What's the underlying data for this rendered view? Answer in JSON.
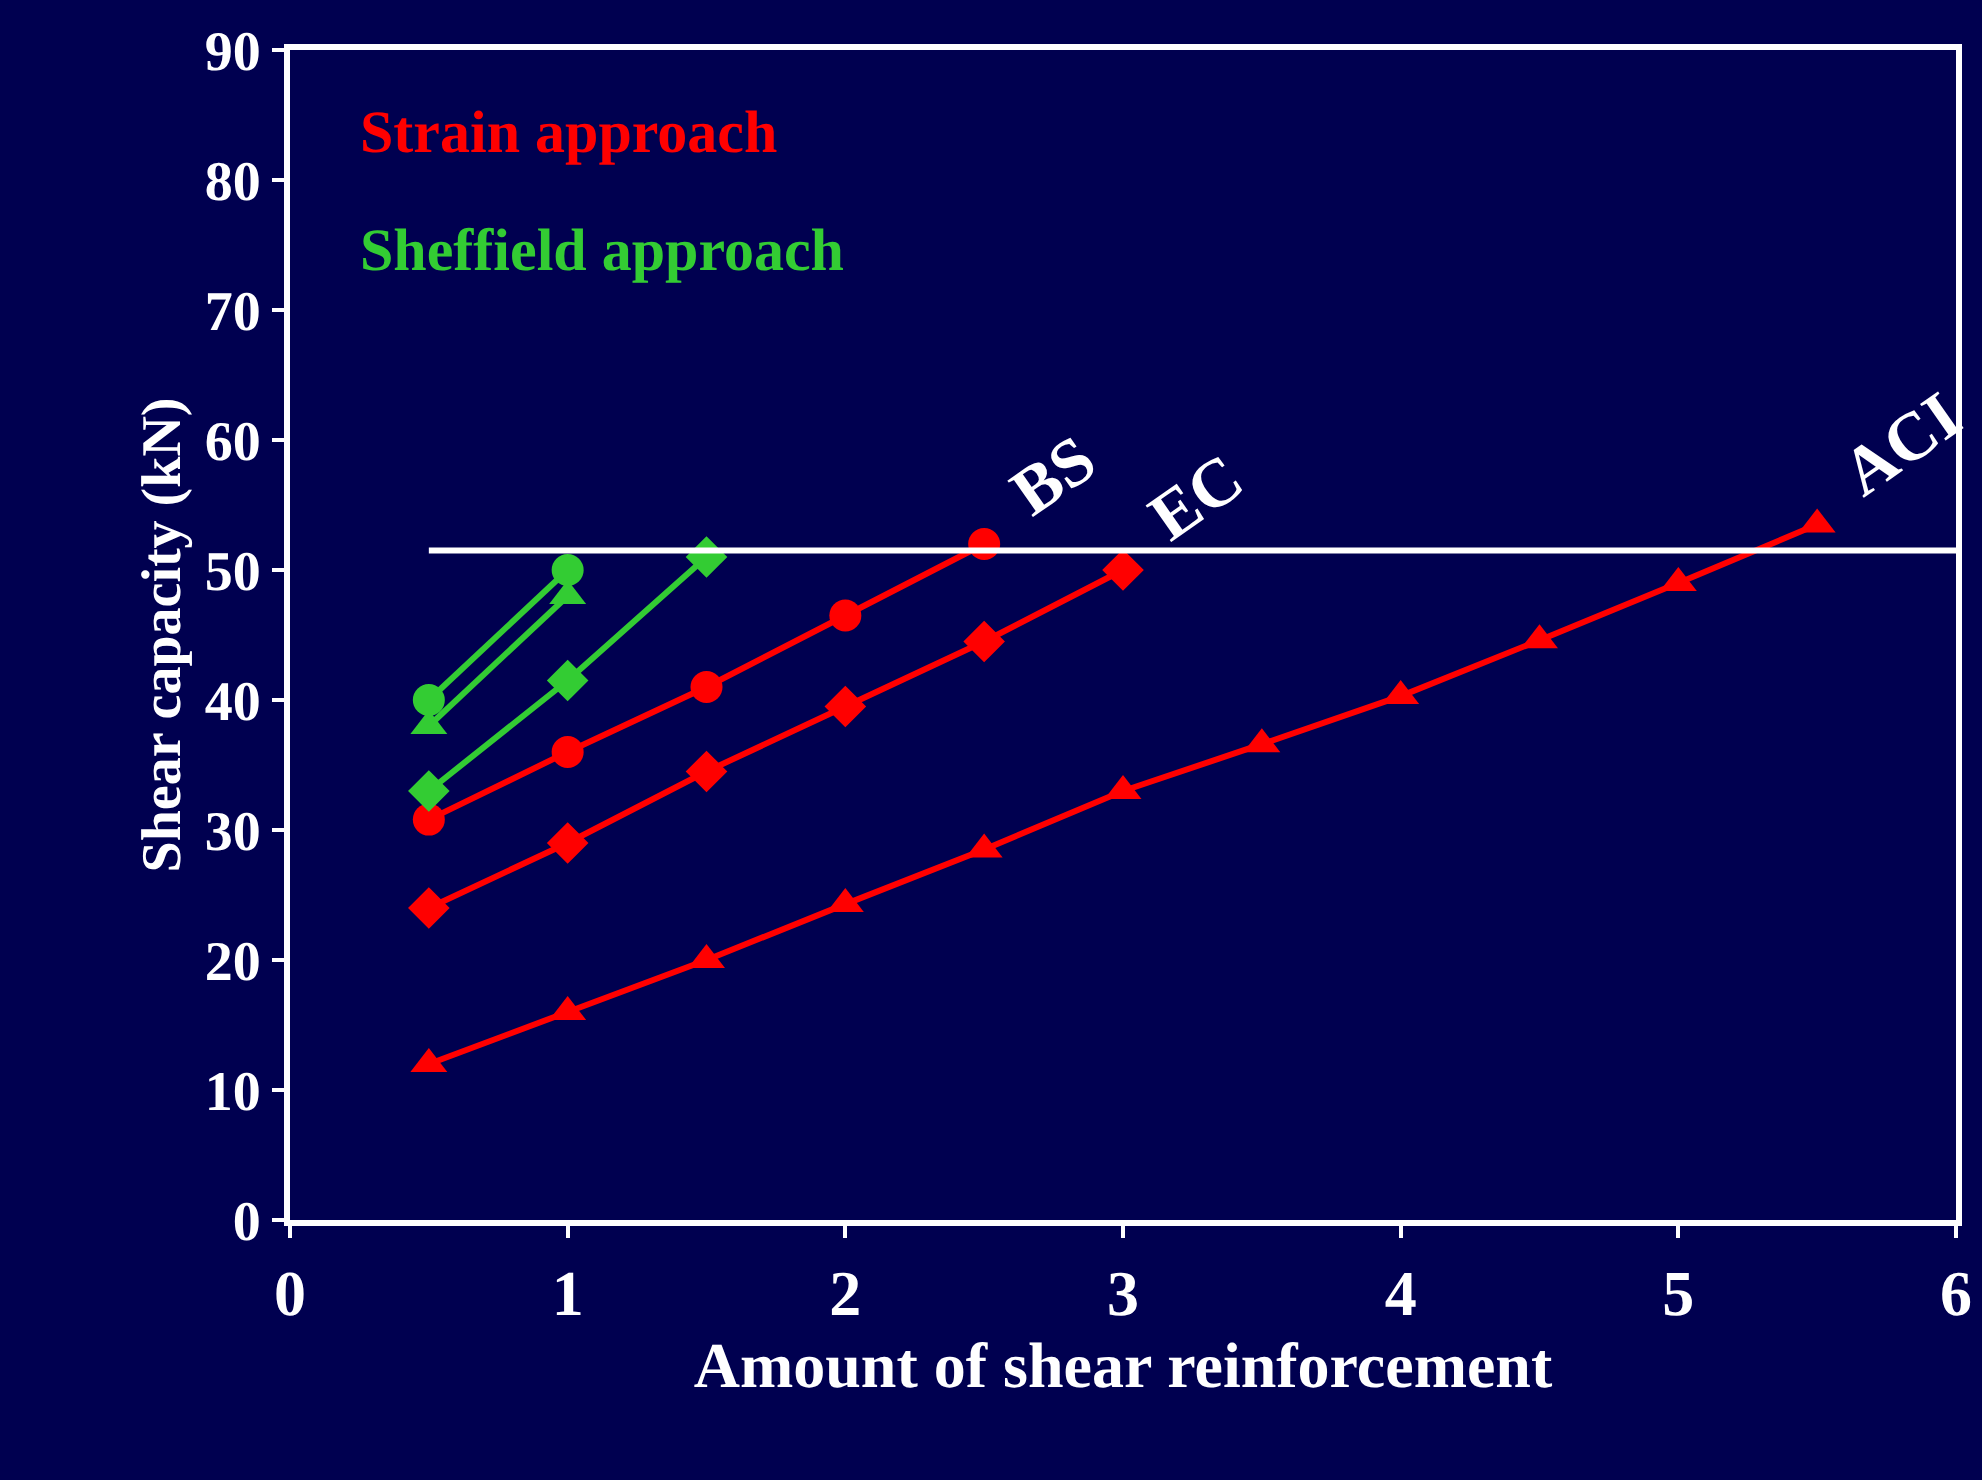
{
  "chart_data": {
    "type": "line",
    "xlabel": "Amount of shear reinforcement",
    "ylabel": "Shear capacity (kN)",
    "annotations": [
      "Strain approach",
      "Sheffield approach"
    ],
    "xlim": [
      0,
      6
    ],
    "xticks": [
      0,
      1,
      2,
      3,
      4,
      5,
      6
    ],
    "ylim": [
      0,
      90
    ],
    "yticks": [
      0,
      10,
      20,
      30,
      40,
      50,
      60,
      70,
      80,
      90
    ],
    "grid": false,
    "legend": false,
    "series": [
      {
        "name": "BS",
        "color": "#ff0000",
        "marker": "circle",
        "x": [
          0.5,
          1,
          1.5,
          2,
          2.5
        ],
        "values": [
          30.8,
          36,
          41,
          46.5,
          52
        ]
      },
      {
        "name": "EC",
        "color": "#ff0000",
        "marker": "diamond",
        "x": [
          0.5,
          1,
          1.5,
          2,
          2.5,
          3
        ],
        "values": [
          24,
          29,
          34.5,
          39.5,
          44.5,
          50
        ]
      },
      {
        "name": "ACI",
        "color": "#ff0000",
        "marker": "triangle",
        "x": [
          0.5,
          1,
          1.5,
          2,
          2.5,
          3,
          3.5,
          4,
          4.5,
          5,
          5.5
        ],
        "values": [
          12,
          16,
          20,
          24.3,
          28.5,
          33,
          36.6,
          40.3,
          44.6,
          49,
          53.5
        ]
      },
      {
        "color": "#33cc33",
        "marker": "circle",
        "x": [
          0.5,
          1
        ],
        "values": [
          40,
          50
        ]
      },
      {
        "color": "#33cc33",
        "marker": "triangle",
        "x": [
          0.5,
          1
        ],
        "values": [
          38,
          48
        ]
      },
      {
        "color": "#33cc33",
        "marker": "diamond",
        "x": [
          0.5,
          1,
          1.5
        ],
        "values": [
          33,
          41.5,
          51
        ]
      },
      {
        "color": "#ffffff",
        "marker": "none",
        "x": [
          0.5,
          6
        ],
        "values": [
          51.5,
          51.5
        ]
      }
    ]
  }
}
